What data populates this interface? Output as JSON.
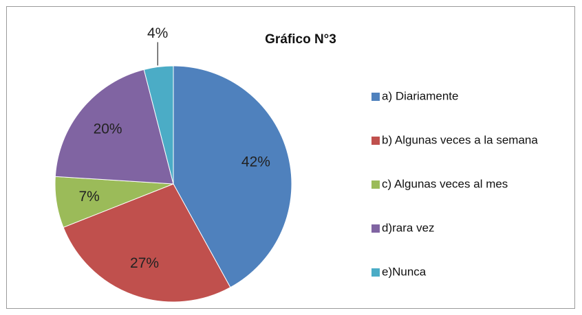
{
  "chart_data": {
    "type": "pie",
    "title": "Gráfico N°3",
    "categories": [
      "a) Diariamente",
      "b) Algunas veces a la semana",
      "c) Algunas veces al mes",
      "d)rara vez",
      "e)Nunca"
    ],
    "values": [
      42,
      27,
      7,
      20,
      4
    ],
    "value_labels": [
      "42%",
      "27%",
      "7%",
      "20%",
      "4%"
    ],
    "colors": [
      "#4f81bd",
      "#c0504d",
      "#9bbb59",
      "#8064a2",
      "#4bacc6"
    ],
    "legend": "right"
  }
}
